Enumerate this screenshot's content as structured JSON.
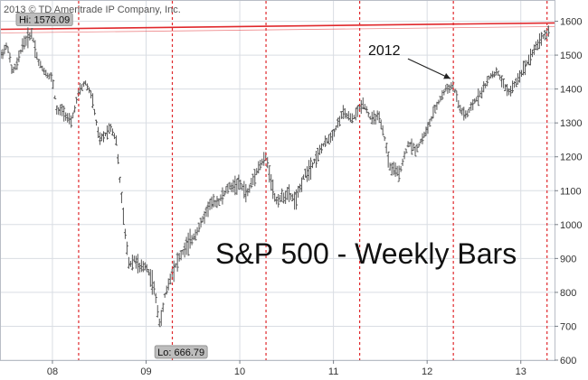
{
  "chart_data": {
    "type": "bar",
    "title": "S&P 500 - Weekly Bars",
    "copyright": "2013 © TD Ameritrade IP Company, Inc.",
    "x": {
      "tick_labels": [
        "08",
        "09",
        "10",
        "11",
        "12",
        "13"
      ],
      "tick_years": [
        2008,
        2009,
        2010,
        2011,
        2012,
        2013
      ],
      "range": [
        2007.45,
        2013.36
      ]
    },
    "y": {
      "tick_labels": [
        "600",
        "700",
        "800",
        "900",
        "1000",
        "1100",
        "1200",
        "1300",
        "1400",
        "1500",
        "1600"
      ],
      "ticks": [
        600,
        700,
        800,
        900,
        1000,
        1100,
        1200,
        1300,
        1400,
        1500,
        1600
      ],
      "ylim": [
        600,
        1660
      ],
      "position": "right"
    },
    "grid": true,
    "series": [
      {
        "style": "ohlc-weekly",
        "color": "#555555",
        "anchors": [
          [
            2007.45,
            1500
          ],
          [
            2007.52,
            1530
          ],
          [
            2007.57,
            1450
          ],
          [
            2007.62,
            1470
          ],
          [
            2007.68,
            1530
          ],
          [
            2007.78,
            1565
          ],
          [
            2007.85,
            1480
          ],
          [
            2007.92,
            1450
          ],
          [
            2008.0,
            1430
          ],
          [
            2008.05,
            1330
          ],
          [
            2008.1,
            1340
          ],
          [
            2008.2,
            1300
          ],
          [
            2008.28,
            1390
          ],
          [
            2008.35,
            1420
          ],
          [
            2008.42,
            1380
          ],
          [
            2008.5,
            1250
          ],
          [
            2008.55,
            1260
          ],
          [
            2008.62,
            1290
          ],
          [
            2008.68,
            1250
          ],
          [
            2008.72,
            1130
          ],
          [
            2008.78,
            960
          ],
          [
            2008.82,
            880
          ],
          [
            2008.88,
            900
          ],
          [
            2008.93,
            870
          ],
          [
            2009.0,
            880
          ],
          [
            2009.08,
            820
          ],
          [
            2009.15,
            700
          ],
          [
            2009.2,
            790
          ],
          [
            2009.28,
            860
          ],
          [
            2009.35,
            900
          ],
          [
            2009.42,
            930
          ],
          [
            2009.5,
            960
          ],
          [
            2009.58,
            1000
          ],
          [
            2009.68,
            1060
          ],
          [
            2009.78,
            1070
          ],
          [
            2009.88,
            1110
          ],
          [
            2010.0,
            1120
          ],
          [
            2010.08,
            1090
          ],
          [
            2010.18,
            1160
          ],
          [
            2010.28,
            1200
          ],
          [
            2010.32,
            1150
          ],
          [
            2010.38,
            1070
          ],
          [
            2010.45,
            1080
          ],
          [
            2010.52,
            1090
          ],
          [
            2010.6,
            1070
          ],
          [
            2010.68,
            1140
          ],
          [
            2010.78,
            1180
          ],
          [
            2010.88,
            1230
          ],
          [
            2011.0,
            1270
          ],
          [
            2011.1,
            1330
          ],
          [
            2011.2,
            1310
          ],
          [
            2011.32,
            1360
          ],
          [
            2011.4,
            1310
          ],
          [
            2011.48,
            1320
          ],
          [
            2011.55,
            1250
          ],
          [
            2011.6,
            1170
          ],
          [
            2011.7,
            1150
          ],
          [
            2011.8,
            1240
          ],
          [
            2011.88,
            1220
          ],
          [
            2012.0,
            1280
          ],
          [
            2012.1,
            1350
          ],
          [
            2012.2,
            1400
          ],
          [
            2012.28,
            1410
          ],
          [
            2012.35,
            1340
          ],
          [
            2012.42,
            1320
          ],
          [
            2012.5,
            1360
          ],
          [
            2012.6,
            1400
          ],
          [
            2012.68,
            1440
          ],
          [
            2012.75,
            1450
          ],
          [
            2012.82,
            1410
          ],
          [
            2012.88,
            1390
          ],
          [
            2012.95,
            1420
          ],
          [
            2013.05,
            1470
          ],
          [
            2013.15,
            1520
          ],
          [
            2013.22,
            1550
          ],
          [
            2013.3,
            1570
          ]
        ]
      }
    ],
    "reference_line": {
      "color": "#e0282c",
      "y_start": 1576.09,
      "y_end": 1595
    },
    "vertical_markers": {
      "color": "#e0282c",
      "style": "dashed",
      "x": [
        2008.28,
        2009.28,
        2010.28,
        2011.28,
        2012.28,
        2013.28
      ]
    },
    "annotations": {
      "high": {
        "text": "Hi: 1576.09",
        "value": 1576.09,
        "x": 2007.72
      },
      "low": {
        "text": "Lo: 666.79",
        "value": 666.79,
        "x": 2009.18
      },
      "year_label": {
        "text": "2012",
        "x": 2012.22,
        "y": 1420
      }
    }
  }
}
